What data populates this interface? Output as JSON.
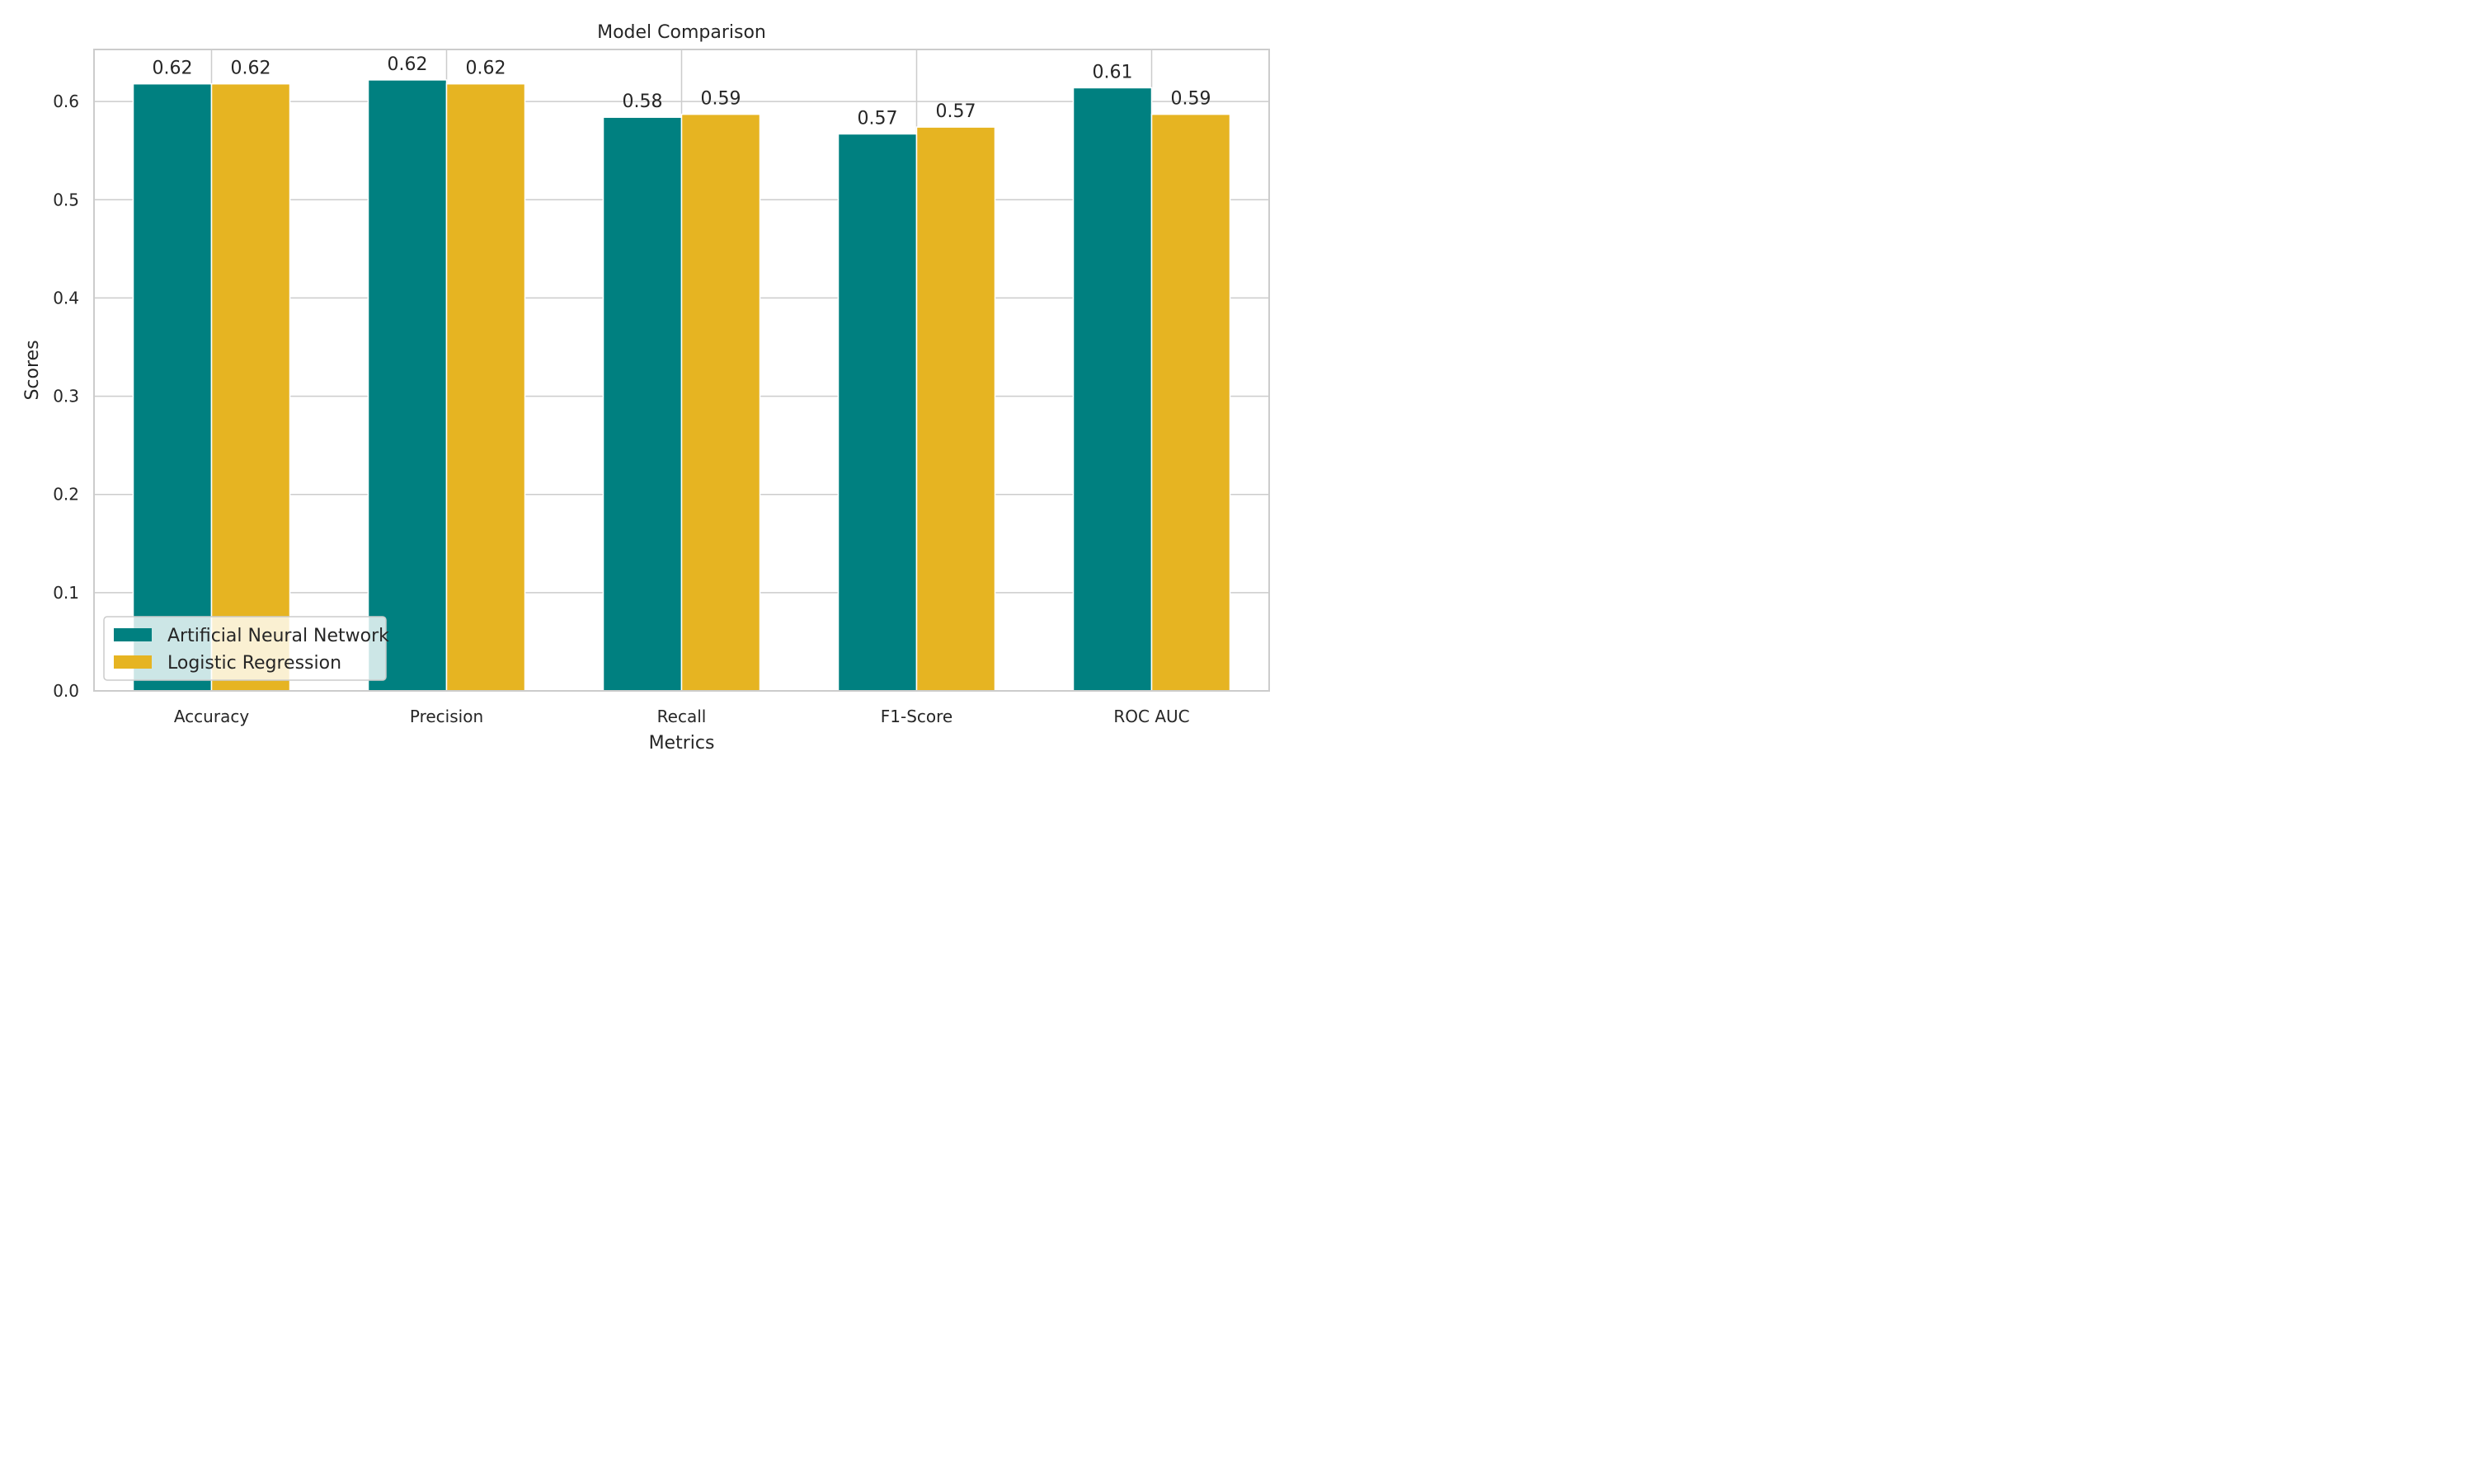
{
  "chart_data": {
    "type": "bar",
    "title": "Model Comparison",
    "xlabel": "Metrics",
    "ylabel": "Scores",
    "categories": [
      "Accuracy",
      "Precision",
      "Recall",
      "F1-Score",
      "ROC AUC"
    ],
    "series": [
      {
        "name": "Artificial Neural Network",
        "color": "#008080",
        "values": [
          0.618,
          0.622,
          0.584,
          0.567,
          0.614
        ],
        "labels": [
          "0.62",
          "0.62",
          "0.58",
          "0.57",
          "0.61"
        ]
      },
      {
        "name": "Logistic Regression",
        "color": "#E6B422",
        "values": [
          0.618,
          0.618,
          0.587,
          0.574,
          0.587
        ],
        "labels": [
          "0.62",
          "0.62",
          "0.59",
          "0.57",
          "0.59"
        ]
      }
    ],
    "ylim": [
      0,
      0.653
    ],
    "yticks": [
      "0.0",
      "0.1",
      "0.2",
      "0.3",
      "0.4",
      "0.5",
      "0.6"
    ],
    "grid": true,
    "legend_position": "lower-left"
  }
}
